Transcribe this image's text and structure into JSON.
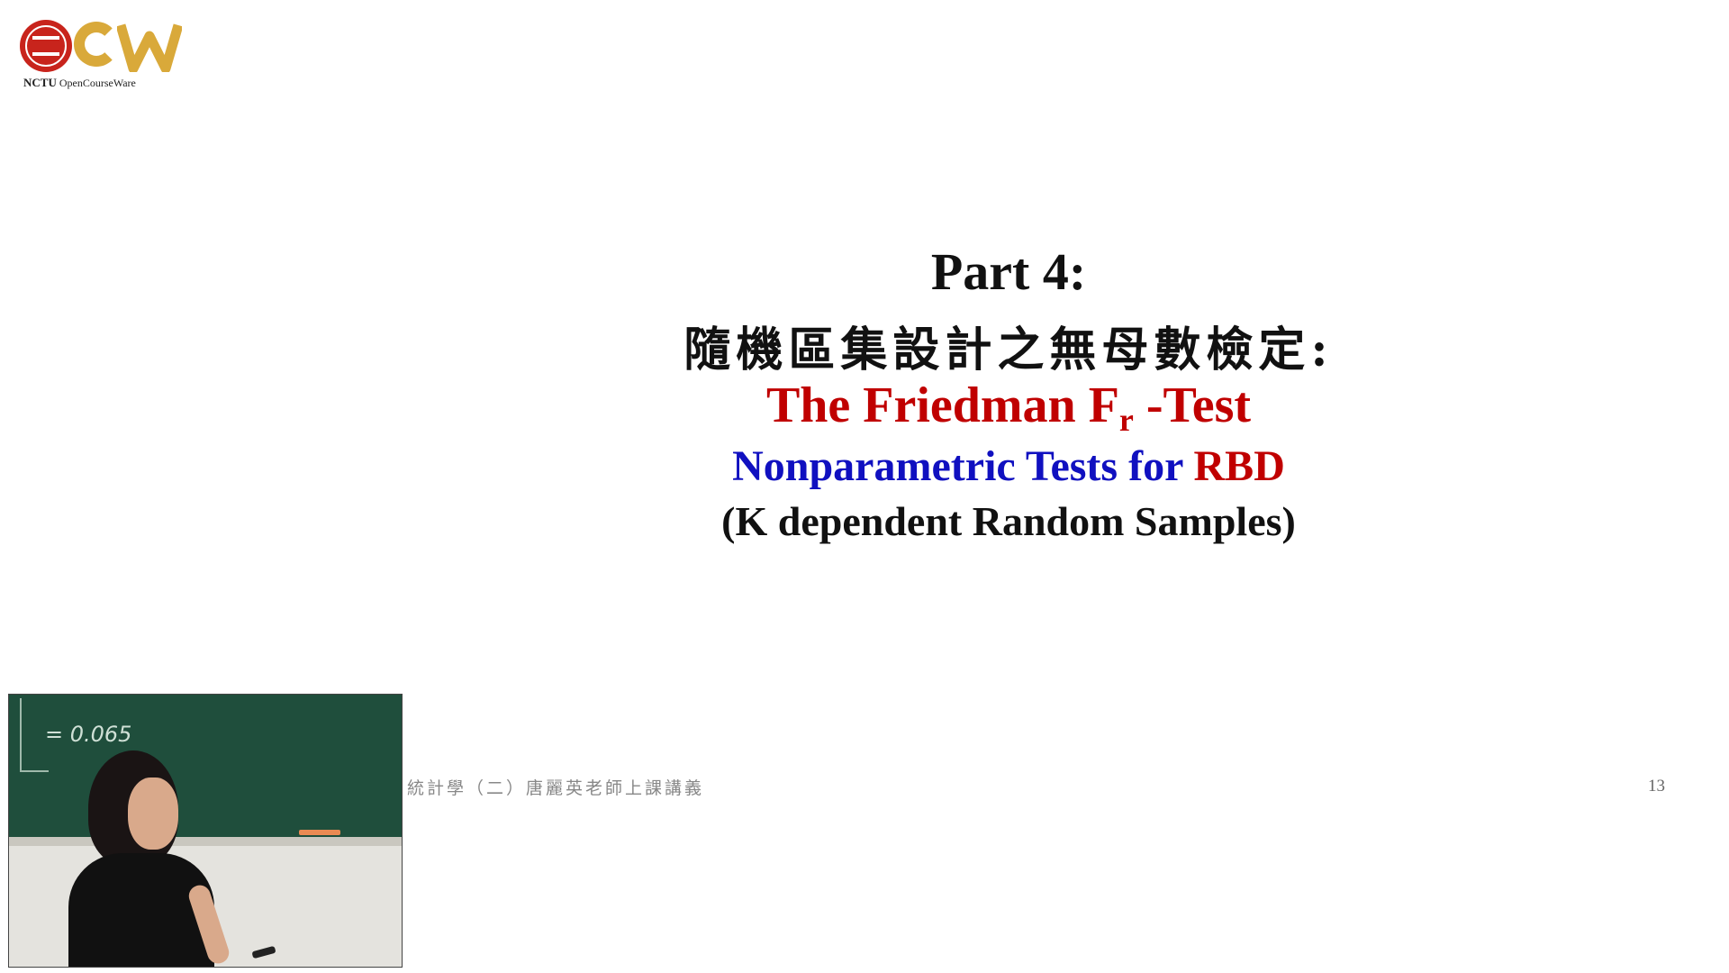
{
  "logo": {
    "org": "NCTU",
    "name": "OpenCourseWare",
    "icon": "ocw-logo-icon",
    "colors": {
      "red": "#c8241c",
      "gold": "#d9a93a"
    }
  },
  "slide": {
    "part": "Part 4:",
    "title_zh": "隨機區集設計之無母數檢定:",
    "test_name_prefix": "The Friedman  F",
    "test_name_sub": "r",
    "test_name_suffix": " -Test",
    "subtitle_main": "Nonparametric Tests for ",
    "subtitle_rbd": "RBD",
    "samples": "(K dependent Random Samples)",
    "footer_course": "統計學（二）唐麗英老師上課講義",
    "page_number": "13",
    "colors": {
      "title": "#111111",
      "red": "#c00000",
      "blue": "#1010c0"
    }
  },
  "video": {
    "chalk_text": "= 0.065"
  }
}
